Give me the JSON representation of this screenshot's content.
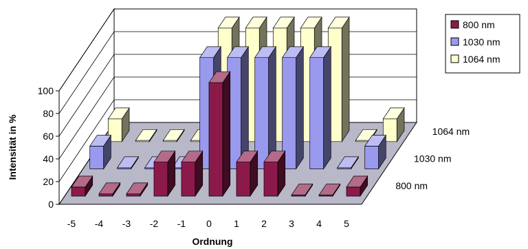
{
  "chart_data": {
    "type": "bar",
    "title": "",
    "xlabel": "Ordnung",
    "ylabel": "Intensität in %",
    "ylim": [
      0,
      100
    ],
    "yticks": [
      0,
      20,
      40,
      60,
      80,
      100
    ],
    "categories": [
      "-5",
      "-4",
      "-3",
      "-2",
      "-1",
      "0",
      "1",
      "2",
      "3",
      "4",
      "5"
    ],
    "series": [
      {
        "name": "800 nm",
        "values": [
          8,
          2,
          2,
          30,
          30,
          100,
          30,
          30,
          1,
          1,
          8
        ],
        "color": "#8b1a4a"
      },
      {
        "name": "1030 nm",
        "values": [
          20,
          1,
          1,
          1,
          98,
          98,
          98,
          98,
          98,
          1,
          20
        ],
        "color": "#9999ee"
      },
      {
        "name": "1064 nm",
        "values": [
          20,
          1,
          1,
          1,
          100,
          100,
          100,
          100,
          100,
          1,
          20
        ],
        "color": "#ffffcc"
      }
    ],
    "grid": true,
    "legend": "top-right"
  }
}
